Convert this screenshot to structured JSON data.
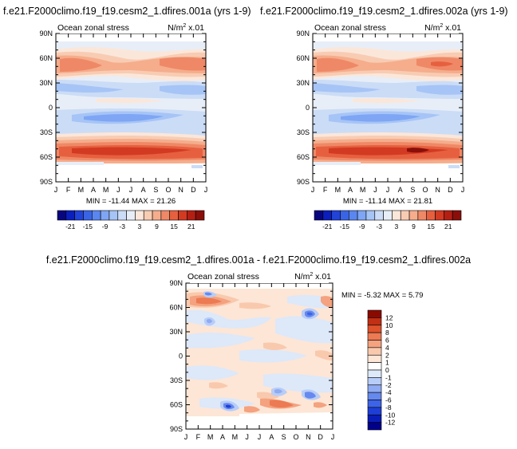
{
  "chart_data": [
    {
      "type": "heatmap",
      "title": "f.e21.F2000climo.f19_f19.cesm2_1.dfires.001a (yrs 1-9)",
      "subtitle_left": "Ocean zonal stress",
      "subtitle_right": "N/m",
      "subtitle_right_sup": "2",
      "subtitle_right_suffix": " x.01",
      "x_ticks": [
        "J",
        "F",
        "M",
        "A",
        "M",
        "J",
        "J",
        "A",
        "S",
        "O",
        "N",
        "D",
        "J"
      ],
      "y_ticks": [
        "90N",
        "60N",
        "30N",
        "0",
        "30S",
        "60S",
        "90S"
      ],
      "ylim": [
        -90,
        90
      ],
      "stats": "MIN = -11.44 MAX =  21.26",
      "colorbar_labels": [
        "-21",
        "-15",
        "-9",
        "-3",
        "3",
        "9",
        "15",
        "21"
      ],
      "colorbar_orientation": "horizontal"
    },
    {
      "type": "heatmap",
      "title": "f.e21.F2000climo.f19_f19.cesm2_1.dfires.002a (yrs 1-9)",
      "subtitle_left": "Ocean zonal stress",
      "subtitle_right": "N/m",
      "subtitle_right_sup": "2",
      "subtitle_right_suffix": " x.01",
      "x_ticks": [
        "J",
        "F",
        "M",
        "A",
        "M",
        "J",
        "J",
        "A",
        "S",
        "O",
        "N",
        "D",
        "J"
      ],
      "y_ticks": [
        "90N",
        "60N",
        "30N",
        "0",
        "30S",
        "60S",
        "90S"
      ],
      "ylim": [
        -90,
        90
      ],
      "stats": "MIN = -11.14 MAX =  21.81",
      "colorbar_labels": [
        "-21",
        "-15",
        "-9",
        "-3",
        "3",
        "9",
        "15",
        "21"
      ],
      "colorbar_orientation": "horizontal"
    },
    {
      "type": "heatmap",
      "title": "f.e21.F2000climo.f19_f19.cesm2_1.dfires.001a - f.e21.F2000climo.f19_f19.cesm2_1.dfires.002a",
      "subtitle_left": "Ocean zonal stress",
      "subtitle_right": "N/m",
      "subtitle_right_sup": "2",
      "subtitle_right_suffix": " x.01",
      "x_ticks": [
        "J",
        "F",
        "M",
        "A",
        "M",
        "J",
        "J",
        "A",
        "S",
        "O",
        "N",
        "D",
        "J"
      ],
      "y_ticks": [
        "90N",
        "60N",
        "30N",
        "0",
        "30S",
        "60S",
        "90S"
      ],
      "ylim": [
        -90,
        90
      ],
      "stats": "MIN =  -5.32 MAX =   5.79",
      "colorbar_labels": [
        "12",
        "10",
        "8",
        "6",
        "4",
        "2",
        "1",
        "0",
        "-1",
        "-2",
        "-4",
        "-6",
        "-8",
        "-10",
        "-12"
      ],
      "colorbar_orientation": "vertical"
    }
  ],
  "colors": {
    "abs_palette": [
      "#08067f",
      "#0b1fbc",
      "#2243d8",
      "#3a64e6",
      "#5a86ef",
      "#7ea6f4",
      "#a6c4f6",
      "#cbdcf6",
      "#e7eef8",
      "#fbe7da",
      "#f8ccb3",
      "#f5ad8c",
      "#ef8866",
      "#e6603f",
      "#d33a22",
      "#b41f14",
      "#8a0f0a"
    ],
    "diff_palette": [
      "#00008b",
      "#0a1cb8",
      "#1e3fd6",
      "#3d63e6",
      "#6689ee",
      "#8fabf3",
      "#b8cdf7",
      "#dde8f9",
      "#ffffff",
      "#fde6d6",
      "#f9c9ad",
      "#f4a27f",
      "#ec7a53",
      "#de522c",
      "#c12f14",
      "#8b0a00"
    ]
  }
}
